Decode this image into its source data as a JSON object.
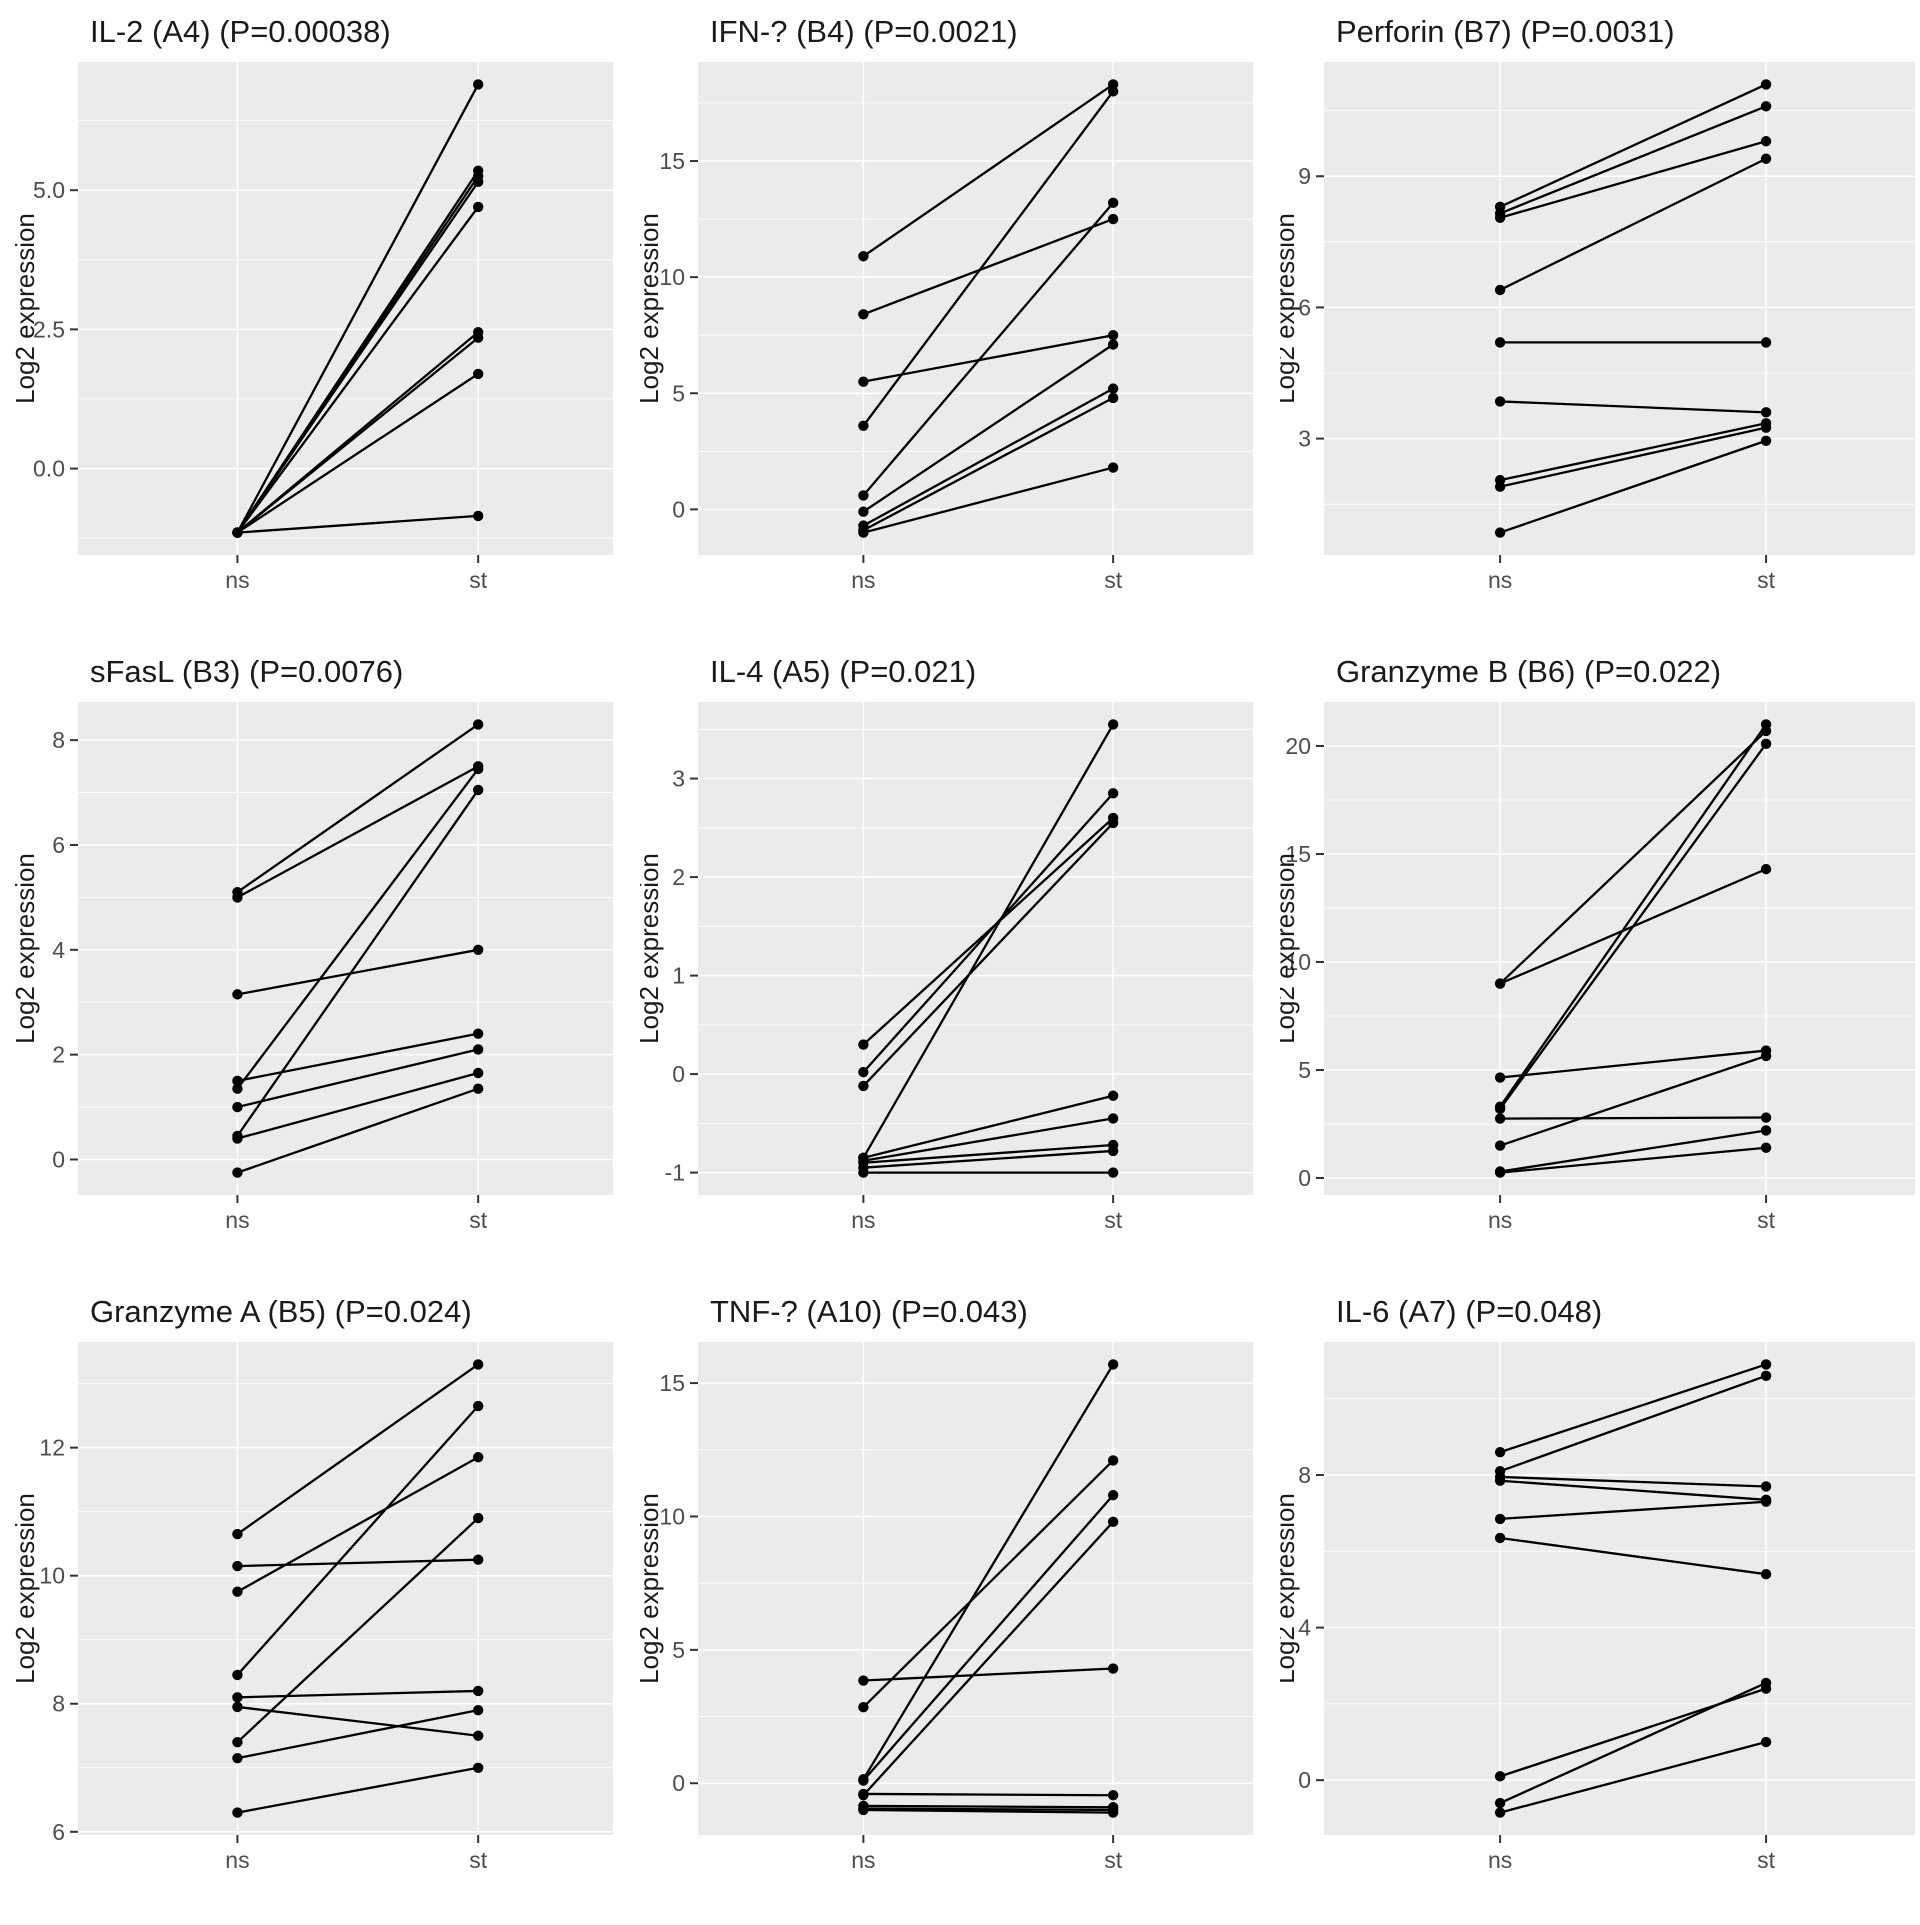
{
  "figure": {
    "ylabel": "Log2 expression",
    "x_categories": [
      "ns",
      "st"
    ],
    "panel_bg": "#EBEBEB",
    "grid_color": "#FFFFFF",
    "point_color": "#000000",
    "line_color": "#000000",
    "tick_text_color": "#4D4D4D",
    "tick_mark_color": "#333333",
    "title_color": "#1A1A1A"
  },
  "chart_data": [
    {
      "type": "line",
      "title": "IL-2 (A4) (P=0.00038)",
      "xlabel": "",
      "ylabel": "Log2 expression",
      "categories": [
        "ns",
        "st"
      ],
      "legend": "none",
      "grid": "on",
      "yticks": [
        0.0,
        2.5,
        5.0
      ],
      "ytick_labels": [
        "0.0",
        "2.5",
        "5.0"
      ],
      "pairs": [
        [
          -1.15,
          6.9
        ],
        [
          -1.15,
          5.35
        ],
        [
          -1.15,
          5.25
        ],
        [
          -1.15,
          5.15
        ],
        [
          -1.15,
          4.7
        ],
        [
          -1.15,
          2.45
        ],
        [
          -1.15,
          2.35
        ],
        [
          -1.15,
          1.7
        ],
        [
          -1.15,
          -0.85
        ]
      ]
    },
    {
      "type": "line",
      "title": "IFN-? (B4) (P=0.0021)",
      "xlabel": "",
      "ylabel": "Log2 expression",
      "categories": [
        "ns",
        "st"
      ],
      "legend": "none",
      "grid": "on",
      "yticks": [
        0,
        5,
        10,
        15
      ],
      "ytick_labels": [
        "0",
        "5",
        "10",
        "15"
      ],
      "pairs": [
        [
          10.9,
          18.3
        ],
        [
          3.6,
          18.0
        ],
        [
          0.6,
          13.2
        ],
        [
          8.4,
          12.5
        ],
        [
          5.5,
          7.5
        ],
        [
          -0.1,
          7.1
        ],
        [
          -0.7,
          5.2
        ],
        [
          -0.9,
          4.8
        ],
        [
          -1.0,
          1.8
        ]
      ]
    },
    {
      "type": "line",
      "title": "Perforin (B7) (P=0.0031)",
      "xlabel": "",
      "ylabel": "Log2 expression",
      "categories": [
        "ns",
        "st"
      ],
      "legend": "none",
      "grid": "on",
      "yticks": [
        3,
        6,
        9
      ],
      "ytick_labels": [
        "3",
        "6",
        "9"
      ],
      "pairs": [
        [
          8.3,
          11.1
        ],
        [
          8.15,
          10.6
        ],
        [
          8.05,
          9.8
        ],
        [
          6.4,
          9.4
        ],
        [
          5.2,
          5.2
        ],
        [
          3.85,
          3.6
        ],
        [
          2.05,
          3.35
        ],
        [
          1.9,
          3.25
        ],
        [
          0.85,
          2.95
        ]
      ]
    },
    {
      "type": "line",
      "title": "sFasL (B3) (P=0.0076)",
      "xlabel": "",
      "ylabel": "Log2 expression",
      "categories": [
        "ns",
        "st"
      ],
      "legend": "none",
      "grid": "on",
      "yticks": [
        0,
        2,
        4,
        6,
        8
      ],
      "ytick_labels": [
        "0",
        "2",
        "4",
        "6",
        "8"
      ],
      "pairs": [
        [
          5.1,
          8.3
        ],
        [
          5.0,
          7.5
        ],
        [
          1.35,
          7.45
        ],
        [
          0.45,
          7.05
        ],
        [
          3.15,
          4.0
        ],
        [
          1.5,
          2.4
        ],
        [
          1.0,
          2.1
        ],
        [
          0.4,
          1.65
        ],
        [
          -0.25,
          1.35
        ]
      ]
    },
    {
      "type": "line",
      "title": "IL-4 (A5) (P=0.021)",
      "xlabel": "",
      "ylabel": "Log2 expression",
      "categories": [
        "ns",
        "st"
      ],
      "legend": "none",
      "grid": "on",
      "yticks": [
        -1,
        0,
        1,
        2,
        3
      ],
      "ytick_labels": [
        "-1",
        "0",
        "1",
        "2",
        "3"
      ],
      "pairs": [
        [
          -0.85,
          3.55
        ],
        [
          0.02,
          2.85
        ],
        [
          0.3,
          2.6
        ],
        [
          -0.12,
          2.55
        ],
        [
          -0.85,
          -0.22
        ],
        [
          -0.88,
          -0.45
        ],
        [
          -0.9,
          -0.72
        ],
        [
          -0.95,
          -0.78
        ],
        [
          -1.0,
          -1.0
        ]
      ]
    },
    {
      "type": "line",
      "title": "Granzyme B (B6) (P=0.022)",
      "xlabel": "",
      "ylabel": "Log2 expression",
      "categories": [
        "ns",
        "st"
      ],
      "legend": "none",
      "grid": "on",
      "yticks": [
        0,
        5,
        10,
        15,
        20
      ],
      "ytick_labels": [
        "0",
        "5",
        "10",
        "15",
        "20"
      ],
      "pairs": [
        [
          3.3,
          21.0
        ],
        [
          9.0,
          20.7
        ],
        [
          3.2,
          20.1
        ],
        [
          9.0,
          14.3
        ],
        [
          4.65,
          5.9
        ],
        [
          1.5,
          5.65
        ],
        [
          2.75,
          2.8
        ],
        [
          0.3,
          2.2
        ],
        [
          0.25,
          1.4
        ]
      ]
    },
    {
      "type": "line",
      "title": "Granzyme A (B5) (P=0.024)",
      "xlabel": "",
      "ylabel": "Log2 expression",
      "categories": [
        "ns",
        "st"
      ],
      "legend": "none",
      "grid": "on",
      "yticks": [
        6,
        8,
        10,
        12
      ],
      "ytick_labels": [
        "6",
        "8",
        "10",
        "12"
      ],
      "pairs": [
        [
          10.65,
          13.3
        ],
        [
          8.45,
          12.65
        ],
        [
          9.75,
          11.85
        ],
        [
          7.4,
          10.9
        ],
        [
          10.15,
          10.25
        ],
        [
          8.1,
          8.2
        ],
        [
          7.15,
          7.9
        ],
        [
          7.95,
          7.5
        ],
        [
          6.3,
          7.0
        ]
      ]
    },
    {
      "type": "line",
      "title": "TNF-? (A10) (P=0.043)",
      "xlabel": "",
      "ylabel": "Log2 expression",
      "categories": [
        "ns",
        "st"
      ],
      "legend": "none",
      "grid": "on",
      "yticks": [
        0,
        5,
        10,
        15
      ],
      "ytick_labels": [
        "0",
        "5",
        "10",
        "15"
      ],
      "pairs": [
        [
          0.15,
          15.7
        ],
        [
          2.85,
          12.1
        ],
        [
          0.1,
          10.8
        ],
        [
          -0.45,
          9.8
        ],
        [
          3.85,
          4.3
        ],
        [
          -0.4,
          -0.45
        ],
        [
          -0.85,
          -0.9
        ],
        [
          -0.95,
          -1.0
        ],
        [
          -1.0,
          -1.1
        ]
      ]
    },
    {
      "type": "line",
      "title": "IL-6 (A7) (P=0.048)",
      "xlabel": "",
      "ylabel": "Log2 expression",
      "categories": [
        "ns",
        "st"
      ],
      "legend": "none",
      "grid": "on",
      "yticks": [
        0,
        4,
        8
      ],
      "ytick_labels": [
        "0",
        "4",
        "8"
      ],
      "pairs": [
        [
          8.6,
          10.9
        ],
        [
          8.1,
          10.6
        ],
        [
          7.95,
          7.7
        ],
        [
          7.85,
          7.35
        ],
        [
          6.85,
          7.3
        ],
        [
          6.35,
          5.4
        ],
        [
          -0.6,
          2.55
        ],
        [
          0.1,
          2.4
        ],
        [
          -0.85,
          1.0
        ]
      ]
    }
  ]
}
